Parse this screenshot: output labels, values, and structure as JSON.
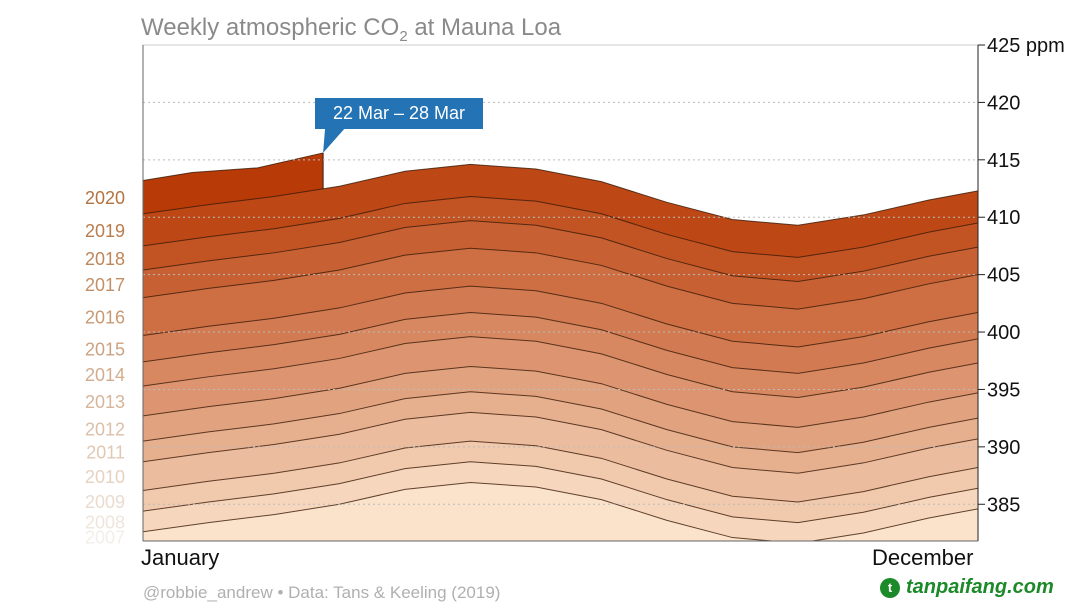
{
  "chart_data": {
    "type": "area",
    "title": "Weekly atmospheric CO2 at Mauna Loa",
    "title_parts": {
      "pre": "Weekly atmospheric CO",
      "sub": "2",
      "post": " at Mauna Loa"
    },
    "x_labels": {
      "start": "January",
      "end": "December"
    },
    "x_unit": "week of year",
    "ylim": [
      381.8,
      425
    ],
    "y_ticks": [
      385,
      390,
      395,
      400,
      405,
      410,
      415,
      420,
      425
    ],
    "y_tick_labels": [
      "385",
      "390",
      "395",
      "400",
      "405",
      "410",
      "415",
      "420",
      "425 ppm"
    ],
    "grid": true,
    "weeks": [
      1,
      5,
      9,
      13,
      17,
      21,
      25,
      29,
      33,
      37,
      41,
      45,
      49,
      52
    ],
    "series": [
      {
        "name": "2007",
        "values": [
          382.6,
          383.4,
          384.1,
          385.0,
          386.3,
          386.9,
          386.5,
          385.4,
          383.6,
          382.1,
          381.6,
          382.5,
          383.8,
          384.6
        ]
      },
      {
        "name": "2008",
        "values": [
          384.4,
          385.2,
          385.9,
          386.8,
          388.1,
          388.7,
          388.3,
          387.2,
          385.4,
          383.9,
          383.4,
          384.3,
          385.6,
          386.4
        ]
      },
      {
        "name": "2009",
        "values": [
          386.2,
          387.0,
          387.7,
          388.6,
          389.9,
          390.5,
          390.1,
          389.0,
          387.2,
          385.7,
          385.2,
          386.1,
          387.4,
          388.2
        ]
      },
      {
        "name": "2010",
        "values": [
          388.7,
          389.5,
          390.2,
          391.1,
          392.4,
          393.0,
          392.6,
          391.5,
          389.7,
          388.2,
          387.7,
          388.6,
          389.9,
          390.7
        ]
      },
      {
        "name": "2011",
        "values": [
          390.5,
          391.3,
          392.0,
          392.9,
          394.2,
          394.8,
          394.4,
          393.3,
          391.5,
          390.0,
          389.5,
          390.4,
          391.7,
          392.5
        ]
      },
      {
        "name": "2012",
        "values": [
          392.7,
          393.5,
          394.2,
          395.1,
          396.4,
          397.0,
          396.6,
          395.5,
          393.7,
          392.2,
          391.7,
          392.6,
          393.9,
          394.7
        ]
      },
      {
        "name": "2013",
        "values": [
          395.3,
          396.1,
          396.8,
          397.7,
          399.0,
          399.6,
          399.2,
          398.1,
          396.3,
          394.8,
          394.3,
          395.2,
          396.5,
          397.3
        ]
      },
      {
        "name": "2014",
        "values": [
          397.4,
          398.2,
          398.9,
          399.8,
          401.1,
          401.7,
          401.3,
          400.2,
          398.4,
          396.9,
          396.4,
          397.3,
          398.6,
          399.4
        ]
      },
      {
        "name": "2015",
        "values": [
          399.7,
          400.5,
          401.2,
          402.1,
          403.4,
          404.0,
          403.6,
          402.5,
          400.7,
          399.2,
          398.7,
          399.6,
          400.9,
          401.7
        ]
      },
      {
        "name": "2016",
        "values": [
          403.0,
          403.8,
          404.5,
          405.4,
          406.7,
          407.3,
          406.9,
          405.8,
          404.0,
          402.5,
          402.0,
          402.9,
          404.2,
          405.0
        ]
      },
      {
        "name": "2017",
        "values": [
          405.4,
          406.2,
          406.9,
          407.8,
          409.1,
          409.7,
          409.3,
          408.2,
          406.4,
          404.9,
          404.4,
          405.3,
          406.6,
          407.4
        ]
      },
      {
        "name": "2018",
        "values": [
          407.5,
          408.3,
          409.0,
          409.9,
          411.2,
          411.8,
          411.4,
          410.3,
          408.5,
          407.0,
          406.5,
          407.4,
          408.7,
          409.5
        ]
      },
      {
        "name": "2019",
        "values": [
          410.3,
          411.1,
          411.8,
          412.7,
          414.0,
          414.6,
          414.2,
          413.1,
          411.3,
          409.8,
          409.3,
          410.2,
          411.5,
          412.3
        ]
      },
      {
        "name": "2020",
        "weeks": [
          1,
          4,
          8,
          12
        ],
        "values": [
          413.2,
          413.9,
          414.3,
          415.6
        ]
      }
    ],
    "annotation": {
      "label": "22 Mar – 28 Mar",
      "week": 12
    },
    "colors": {
      "oldest": "#fbe3cb",
      "newest": "#b83a06",
      "label_oldest": "#f4eee8",
      "label_newest": "#b4733f",
      "callout": "#2473b5"
    }
  },
  "footer": {
    "credit": "@robbie_andrew  •  Data: Tans & Keeling (2019)",
    "watermark": "tanpaifang.com"
  }
}
